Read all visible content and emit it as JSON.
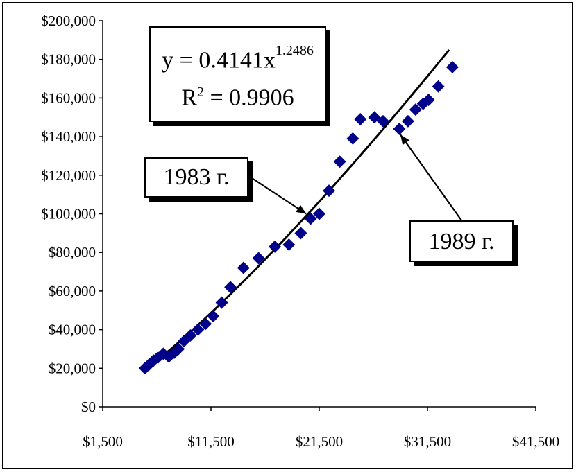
{
  "chart_data": {
    "type": "scatter",
    "xlim": [
      1500,
      41500
    ],
    "ylim": [
      0,
      200000
    ],
    "x_ticks": [
      1500,
      11500,
      21500,
      31500,
      41500
    ],
    "x_tick_labels": [
      "$1,500",
      "$11,500",
      "$21,500",
      "$31,500",
      "$41,500"
    ],
    "y_ticks": [
      0,
      20000,
      40000,
      60000,
      80000,
      100000,
      120000,
      140000,
      160000,
      180000,
      200000
    ],
    "y_tick_labels": [
      "$0",
      "$20,000",
      "$40,000",
      "$60,000",
      "$80,000",
      "$100,000",
      "$120,000",
      "$140,000",
      "$160,000",
      "$180,000",
      "$200,000"
    ],
    "grid": false,
    "marker": "diamond",
    "series": [
      {
        "color": "#00008b",
        "points": [
          [
            5400,
            20000
          ],
          [
            5800,
            22000
          ],
          [
            6200,
            24000
          ],
          [
            6600,
            25500
          ],
          [
            7100,
            27500
          ],
          [
            7600,
            26000
          ],
          [
            8100,
            28000
          ],
          [
            8500,
            30000
          ],
          [
            9000,
            34000
          ],
          [
            9600,
            37000
          ],
          [
            10300,
            40000
          ],
          [
            11000,
            43000
          ],
          [
            11700,
            47000
          ],
          [
            12500,
            54000
          ],
          [
            13300,
            62000
          ],
          [
            14500,
            72000
          ],
          [
            15900,
            77000
          ],
          [
            17400,
            83000
          ],
          [
            18700,
            84000
          ],
          [
            19800,
            90000
          ],
          [
            20700,
            97500
          ],
          [
            21500,
            100000
          ],
          [
            22400,
            112000
          ],
          [
            23400,
            127000
          ],
          [
            24600,
            139000
          ],
          [
            25300,
            149000
          ],
          [
            26600,
            150000
          ],
          [
            27400,
            148000
          ],
          [
            28900,
            144000
          ],
          [
            29700,
            148000
          ],
          [
            30400,
            154000
          ],
          [
            31100,
            157000
          ],
          [
            31600,
            159000
          ],
          [
            32500,
            166000
          ],
          [
            33800,
            176000
          ]
        ]
      }
    ],
    "trendline": {
      "type": "power",
      "color": "#000000",
      "coefficient": 0.4141,
      "exponent": 1.2486,
      "x_range": [
        5500,
        33500
      ]
    },
    "annotations": {
      "equation_y": "y = 0.4141x",
      "equation_exp": "1.2486",
      "r2_prefix": "R",
      "r2_exp": "2",
      "r2_value": " = 0.9906",
      "label_1983": "1983 г.",
      "label_1989": "1989 г.",
      "arrow_1983_target": [
        20300,
        100000
      ],
      "arrow_1989_target": [
        29000,
        141000
      ]
    }
  }
}
